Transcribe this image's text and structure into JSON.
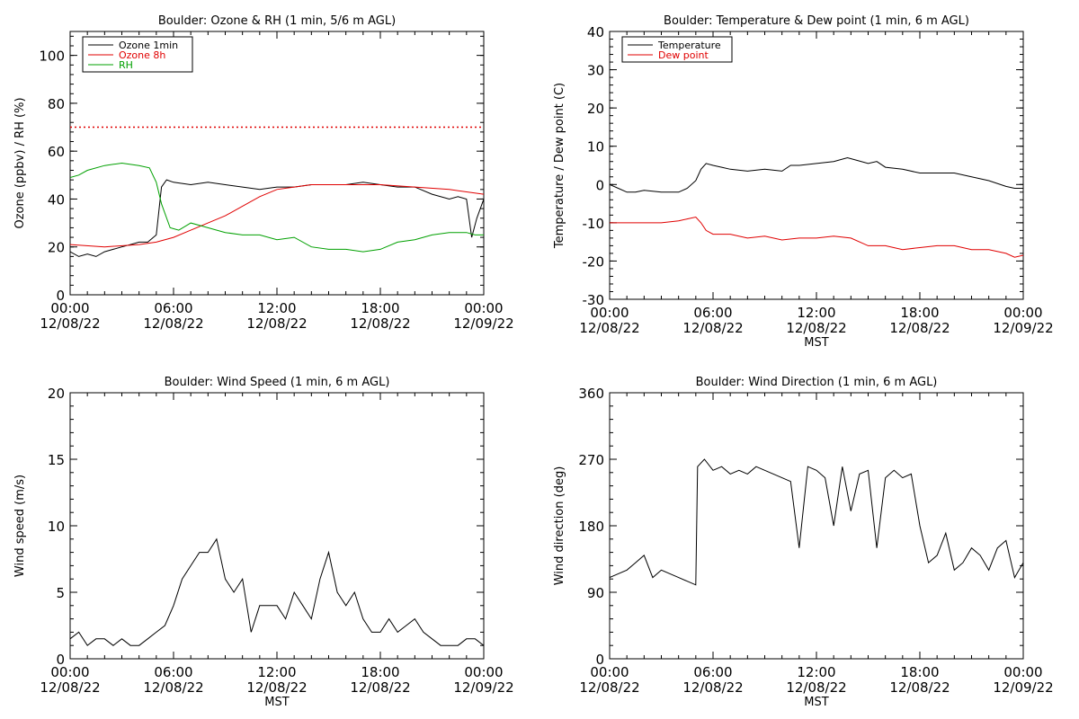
{
  "chart_data": [
    {
      "type": "line",
      "title": "Boulder: Ozone & RH (1 min, 5/6 m AGL)",
      "xlabel": "",
      "ylabel": "Ozone (ppbv) / RH (%)",
      "ylim": [
        0,
        110
      ],
      "y_ticks": [
        0,
        20,
        40,
        60,
        80,
        100
      ],
      "x_hours": [
        0,
        6,
        12,
        18,
        24
      ],
      "x_tick_labels": [
        [
          "00:00",
          "12/08/22"
        ],
        [
          "06:00",
          "12/08/22"
        ],
        [
          "12:00",
          "12/08/22"
        ],
        [
          "18:00",
          "12/08/22"
        ],
        [
          "00:00",
          "12/09/22"
        ]
      ],
      "legend_position": "top-left",
      "grid": false,
      "series": [
        {
          "name": "Ozone 1min",
          "color": "#000000",
          "x": [
            0,
            0.5,
            1,
            1.5,
            2,
            2.5,
            3,
            3.5,
            4,
            4.5,
            5,
            5.3,
            5.6,
            6,
            7,
            8,
            9,
            10,
            11,
            12,
            13,
            14,
            15,
            16,
            17,
            18,
            19,
            20,
            21,
            22,
            22.5,
            23,
            23.3,
            23.6,
            24
          ],
          "y": [
            18,
            16,
            17,
            16,
            18,
            19,
            20,
            21,
            22,
            22,
            25,
            45,
            48,
            47,
            46,
            47,
            46,
            45,
            44,
            45,
            45,
            46,
            46,
            46,
            47,
            46,
            45,
            45,
            42,
            40,
            41,
            40,
            24,
            32,
            40
          ]
        },
        {
          "name": "Ozone 8h",
          "color": "#e00000",
          "x": [
            0,
            2,
            4,
            5,
            6,
            7,
            8,
            9,
            10,
            11,
            12,
            13,
            14,
            16,
            18,
            20,
            22,
            24
          ],
          "y": [
            21,
            20,
            21,
            22,
            24,
            27,
            30,
            33,
            37,
            41,
            44,
            45,
            46,
            46,
            46,
            45,
            44,
            42
          ]
        },
        {
          "name": "RH",
          "color": "#00a000",
          "x": [
            0,
            0.5,
            1,
            2,
            3,
            4,
            4.6,
            5,
            5.3,
            5.8,
            6.3,
            7,
            8,
            9,
            10,
            11,
            12,
            13,
            14,
            15,
            16,
            17,
            18,
            19,
            20,
            21,
            22,
            23,
            23.5,
            24
          ],
          "y": [
            49,
            50,
            52,
            54,
            55,
            54,
            53,
            47,
            38,
            28,
            27,
            30,
            28,
            26,
            25,
            25,
            23,
            24,
            20,
            19,
            19,
            18,
            19,
            22,
            23,
            25,
            26,
            26,
            25,
            25
          ]
        },
        {
          "name": "",
          "color": "#e00000",
          "style": "dotted",
          "x": [
            0,
            24
          ],
          "y": [
            70,
            70
          ]
        }
      ]
    },
    {
      "type": "line",
      "title": "Boulder: Temperature & Dew point (1 min, 6 m AGL)",
      "xlabel": "MST",
      "ylabel": "Temperature / Dew point (C)",
      "ylim": [
        -30,
        40
      ],
      "y_ticks": [
        -30,
        -20,
        -10,
        0,
        10,
        20,
        30,
        40
      ],
      "x_hours": [
        0,
        6,
        12,
        18,
        24
      ],
      "x_tick_labels": [
        [
          "00:00",
          "12/08/22"
        ],
        [
          "06:00",
          "12/08/22"
        ],
        [
          "12:00",
          "12/08/22"
        ],
        [
          "18:00",
          "12/08/22"
        ],
        [
          "00:00",
          "12/09/22"
        ]
      ],
      "legend_position": "top-left",
      "grid": false,
      "series": [
        {
          "name": "Temperature",
          "color": "#000000",
          "x": [
            0,
            0.5,
            1,
            1.5,
            2,
            3,
            4,
            4.5,
            5,
            5.3,
            5.6,
            6,
            6.5,
            7,
            8,
            9,
            10,
            10.5,
            11,
            12,
            13,
            13.8,
            14.2,
            15,
            15.5,
            16,
            17,
            18,
            19,
            20,
            21,
            22,
            23,
            23.5,
            24
          ],
          "y": [
            0,
            -1,
            -2,
            -2,
            -1.5,
            -2,
            -2,
            -1,
            1,
            4,
            5.5,
            5,
            4.5,
            4,
            3.5,
            4,
            3.5,
            5,
            5,
            5.5,
            6,
            7,
            6.5,
            5.5,
            6,
            4.5,
            4,
            3,
            3,
            3,
            2,
            1,
            -0.5,
            -1,
            -1
          ]
        },
        {
          "name": "Dew point",
          "color": "#e00000",
          "x": [
            0,
            1,
            2,
            3,
            4,
            4.5,
            5,
            5.3,
            5.6,
            6,
            7,
            8,
            9,
            10,
            11,
            12,
            13,
            14,
            15,
            16,
            17,
            18,
            19,
            20,
            21,
            22,
            23,
            23.5,
            24
          ],
          "y": [
            -10,
            -10,
            -10,
            -10,
            -9.5,
            -9,
            -8.5,
            -10,
            -12,
            -13,
            -13,
            -14,
            -13.5,
            -14.5,
            -14,
            -14,
            -13.5,
            -14,
            -16,
            -16,
            -17,
            -16.5,
            -16,
            -16,
            -17,
            -17,
            -18,
            -19,
            -18.5
          ]
        }
      ]
    },
    {
      "type": "line",
      "title": "Boulder: Wind Speed (1 min, 6 m AGL)",
      "xlabel": "MST",
      "ylabel": "Wind speed (m/s)",
      "ylim": [
        0,
        20
      ],
      "y_ticks": [
        0,
        5,
        10,
        15,
        20
      ],
      "x_hours": [
        0,
        6,
        12,
        18,
        24
      ],
      "x_tick_labels": [
        [
          "00:00",
          "12/08/22"
        ],
        [
          "06:00",
          "12/08/22"
        ],
        [
          "12:00",
          "12/08/22"
        ],
        [
          "18:00",
          "12/08/22"
        ],
        [
          "00:00",
          "12/09/22"
        ]
      ],
      "grid": false,
      "series": [
        {
          "name": "",
          "color": "#000000",
          "x": [
            0,
            0.5,
            1,
            1.5,
            2,
            2.5,
            3,
            3.5,
            4,
            4.5,
            5,
            5.5,
            6,
            6.5,
            7,
            7.5,
            8,
            8.5,
            9,
            9.5,
            10,
            10.5,
            11,
            11.5,
            12,
            12.5,
            13,
            13.5,
            14,
            14.5,
            15,
            15.5,
            16,
            16.5,
            17,
            17.5,
            18,
            18.5,
            19,
            19.5,
            20,
            20.5,
            21,
            21.5,
            22,
            22.5,
            23,
            23.5,
            24
          ],
          "y": [
            1.5,
            2,
            1,
            1.5,
            1.5,
            1,
            1.5,
            1,
            1,
            1.5,
            2,
            2.5,
            4,
            6,
            7,
            8,
            8,
            9,
            6,
            5,
            6,
            2,
            4,
            4,
            4,
            3,
            5,
            4,
            3,
            6,
            8,
            5,
            4,
            5,
            3,
            2,
            2,
            3,
            2,
            2.5,
            3,
            2,
            1.5,
            1,
            1,
            1,
            1.5,
            1.5,
            1
          ]
        }
      ]
    },
    {
      "type": "line",
      "title": "Boulder: Wind Direction (1 min, 6 m AGL)",
      "xlabel": "MST",
      "ylabel": "Wind direction (deg)",
      "ylim": [
        0,
        360
      ],
      "y_ticks": [
        0,
        90,
        180,
        270,
        360
      ],
      "x_hours": [
        0,
        6,
        12,
        18,
        24
      ],
      "x_tick_labels": [
        [
          "00:00",
          "12/08/22"
        ],
        [
          "06:00",
          "12/08/22"
        ],
        [
          "12:00",
          "12/08/22"
        ],
        [
          "18:00",
          "12/08/22"
        ],
        [
          "00:00",
          "12/09/22"
        ]
      ],
      "grid": false,
      "series": [
        {
          "name": "",
          "color": "#000000",
          "x": [
            0,
            0.5,
            1,
            1.5,
            2,
            2.5,
            3,
            3.5,
            4,
            4.5,
            5,
            5.1,
            5.5,
            6,
            6.5,
            7,
            7.5,
            8,
            8.5,
            9,
            9.5,
            10,
            10.5,
            11,
            11.5,
            12,
            12.5,
            13,
            13.5,
            14,
            14.5,
            15,
            15.5,
            16,
            16.5,
            17,
            17.5,
            18,
            18.5,
            19,
            19.5,
            20,
            20.5,
            21,
            21.5,
            22,
            22.5,
            23,
            23.5,
            24
          ],
          "y": [
            110,
            115,
            120,
            130,
            140,
            110,
            120,
            115,
            110,
            105,
            100,
            260,
            270,
            255,
            260,
            250,
            255,
            250,
            260,
            255,
            250,
            245,
            240,
            150,
            260,
            255,
            245,
            180,
            260,
            200,
            250,
            255,
            150,
            245,
            255,
            245,
            250,
            180,
            130,
            140,
            170,
            120,
            130,
            150,
            140,
            120,
            150,
            160,
            110,
            130
          ]
        }
      ]
    }
  ]
}
